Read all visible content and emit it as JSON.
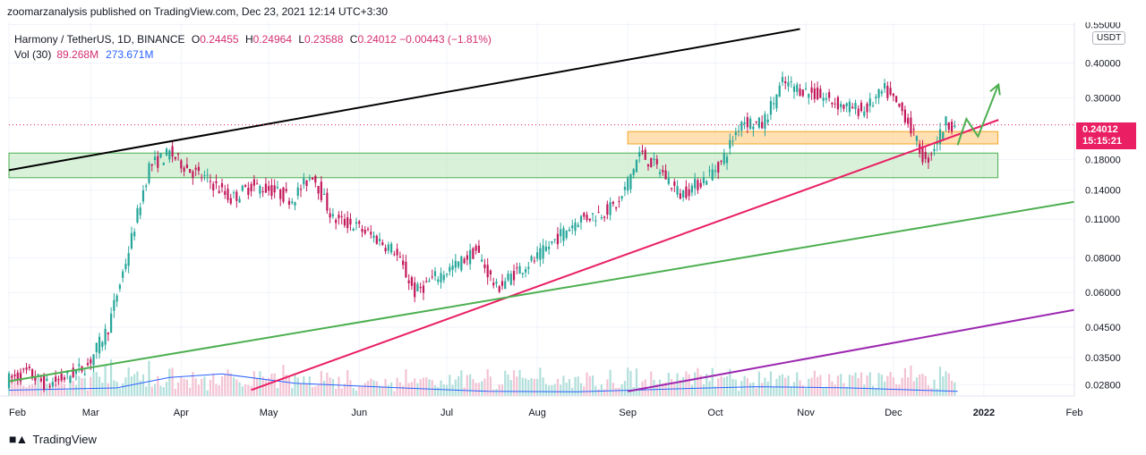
{
  "header": {
    "published": "zoomarzanalysis published on TradingView.com, Dec 23, 2021 12:14 UTC+3:30"
  },
  "legend": {
    "symbol": "Harmony / TetherUS, 1D, BINANCE",
    "open_label": "O",
    "open": "0.24455",
    "high_label": "H",
    "high": "0.24964",
    "low_label": "L",
    "low": "0.23588",
    "close_label": "C",
    "close": "0.24012",
    "change": "−0.00443 (−1.81%)",
    "vol_label": "Vol (30)",
    "vol_value": "89.268M",
    "vol_ma": "273.671M"
  },
  "price_axis": {
    "unit": "USDT",
    "current_price": "0.24012",
    "countdown": "15:15:21"
  },
  "footer": {
    "brand": "TradingView"
  },
  "colors": {
    "up": "#26a69a",
    "down": "#c2185b",
    "price_tag": "#e91e63",
    "support_zone": "#b9e6b9",
    "resistance_zone": "#ffd699",
    "black_line": "#000000",
    "red_line": "#e91e63",
    "green_line": "#4caf50",
    "purple_line": "#9c27b0",
    "arrow": "#4caf50",
    "volume_ma": "#2962ff"
  },
  "chart_data": {
    "type": "candlestick",
    "title": "Harmony / TetherUS, 1D, BINANCE",
    "scale": "log",
    "ylim": [
      0.0255,
      0.56
    ],
    "y_ticks": [
      0.55,
      0.4,
      0.3,
      0.18,
      0.14,
      0.11,
      0.08,
      0.06,
      0.045,
      0.035,
      0.028
    ],
    "y_tick_labels": [
      "0.55000",
      "0.40000",
      "0.30000",
      "0.18000",
      "0.14000",
      "0.11000",
      "0.08000",
      "0.06000",
      "0.04500",
      "0.03500",
      "0.02800"
    ],
    "x_ticks": [
      "Feb",
      "Mar",
      "Apr",
      "May",
      "Jun",
      "Jul",
      "Aug",
      "Sep",
      "Oct",
      "Nov",
      "Dec",
      "2022",
      "Feb"
    ],
    "x_tick_dates": [
      "2021-02-01",
      "2021-03-01",
      "2021-04-01",
      "2021-05-01",
      "2021-06-01",
      "2021-07-01",
      "2021-08-01",
      "2021-09-01",
      "2021-10-01",
      "2021-11-01",
      "2021-12-01",
      "2022-01-01",
      "2022-02-01"
    ],
    "x_range": [
      "2021-02-01",
      "2022-02-01"
    ],
    "price_path": [
      {
        "date": "2021-02-01",
        "close": 0.029
      },
      {
        "date": "2021-02-08",
        "close": 0.031
      },
      {
        "date": "2021-02-15",
        "close": 0.028
      },
      {
        "date": "2021-02-22",
        "close": 0.03
      },
      {
        "date": "2021-03-01",
        "close": 0.033
      },
      {
        "date": "2021-03-08",
        "close": 0.045
      },
      {
        "date": "2021-03-15",
        "close": 0.085
      },
      {
        "date": "2021-03-22",
        "close": 0.17
      },
      {
        "date": "2021-03-29",
        "close": 0.19
      },
      {
        "date": "2021-04-05",
        "close": 0.165
      },
      {
        "date": "2021-04-12",
        "close": 0.15
      },
      {
        "date": "2021-04-19",
        "close": 0.13
      },
      {
        "date": "2021-04-26",
        "close": 0.145
      },
      {
        "date": "2021-05-03",
        "close": 0.14
      },
      {
        "date": "2021-05-10",
        "close": 0.13
      },
      {
        "date": "2021-05-17",
        "close": 0.16
      },
      {
        "date": "2021-05-24",
        "close": 0.11
      },
      {
        "date": "2021-05-31",
        "close": 0.105
      },
      {
        "date": "2021-06-07",
        "close": 0.095
      },
      {
        "date": "2021-06-14",
        "close": 0.085
      },
      {
        "date": "2021-06-21",
        "close": 0.06
      },
      {
        "date": "2021-06-28",
        "close": 0.068
      },
      {
        "date": "2021-07-05",
        "close": 0.075
      },
      {
        "date": "2021-07-12",
        "close": 0.085
      },
      {
        "date": "2021-07-19",
        "close": 0.062
      },
      {
        "date": "2021-07-26",
        "close": 0.072
      },
      {
        "date": "2021-08-02",
        "close": 0.08
      },
      {
        "date": "2021-08-09",
        "close": 0.095
      },
      {
        "date": "2021-08-16",
        "close": 0.11
      },
      {
        "date": "2021-08-23",
        "close": 0.115
      },
      {
        "date": "2021-08-30",
        "close": 0.125
      },
      {
        "date": "2021-09-06",
        "close": 0.19
      },
      {
        "date": "2021-09-13",
        "close": 0.165
      },
      {
        "date": "2021-09-20",
        "close": 0.135
      },
      {
        "date": "2021-09-27",
        "close": 0.15
      },
      {
        "date": "2021-10-04",
        "close": 0.175
      },
      {
        "date": "2021-10-11",
        "close": 0.25
      },
      {
        "date": "2021-10-18",
        "close": 0.24
      },
      {
        "date": "2021-10-25",
        "close": 0.34
      },
      {
        "date": "2021-11-01",
        "close": 0.32
      },
      {
        "date": "2021-11-08",
        "close": 0.3
      },
      {
        "date": "2021-11-15",
        "close": 0.28
      },
      {
        "date": "2021-11-22",
        "close": 0.27
      },
      {
        "date": "2021-11-29",
        "close": 0.32
      },
      {
        "date": "2021-12-06",
        "close": 0.26
      },
      {
        "date": "2021-12-13",
        "close": 0.175
      },
      {
        "date": "2021-12-20",
        "close": 0.245
      },
      {
        "date": "2021-12-23",
        "close": 0.24012
      }
    ],
    "zones": [
      {
        "name": "support",
        "from": "2021-02-01",
        "to": "2021-12-23",
        "low": 0.155,
        "high": 0.19
      },
      {
        "name": "resistance",
        "from": "2021-09-01",
        "to": "2021-12-23",
        "low": 0.205,
        "high": 0.227
      }
    ],
    "trendlines": [
      {
        "color": "black",
        "points": [
          [
            "2021-02-01",
            0.165
          ],
          [
            "2021-10-30",
            0.53
          ]
        ]
      },
      {
        "color": "red",
        "points": [
          [
            "2021-04-25",
            0.0268
          ],
          [
            "2022-01-06",
            0.25
          ]
        ]
      },
      {
        "color": "green",
        "points": [
          [
            "2021-02-01",
            0.0288
          ],
          [
            "2022-02-01",
            0.127
          ]
        ]
      },
      {
        "color": "purple",
        "points": [
          [
            "2021-09-01",
            0.0265
          ],
          [
            "2022-02-01",
            0.052
          ]
        ]
      }
    ],
    "projection_arrow": [
      [
        "2021-12-23",
        0.203
      ],
      [
        "2021-12-26",
        0.252
      ],
      [
        "2021-12-30",
        0.218
      ],
      [
        "2022-01-06",
        0.335
      ]
    ],
    "volume_ma": [
      {
        "date": "2021-02-01",
        "level": 0.25
      },
      {
        "date": "2021-03-10",
        "level": 0.35
      },
      {
        "date": "2021-03-28",
        "level": 0.8
      },
      {
        "date": "2021-04-15",
        "level": 0.95
      },
      {
        "date": "2021-05-10",
        "level": 0.55
      },
      {
        "date": "2021-06-15",
        "level": 0.35
      },
      {
        "date": "2021-07-15",
        "level": 0.2
      },
      {
        "date": "2021-08-15",
        "level": 0.18
      },
      {
        "date": "2021-09-15",
        "level": 0.3
      },
      {
        "date": "2021-10-15",
        "level": 0.4
      },
      {
        "date": "2021-11-15",
        "level": 0.35
      },
      {
        "date": "2021-12-23",
        "level": 0.2
      }
    ]
  }
}
